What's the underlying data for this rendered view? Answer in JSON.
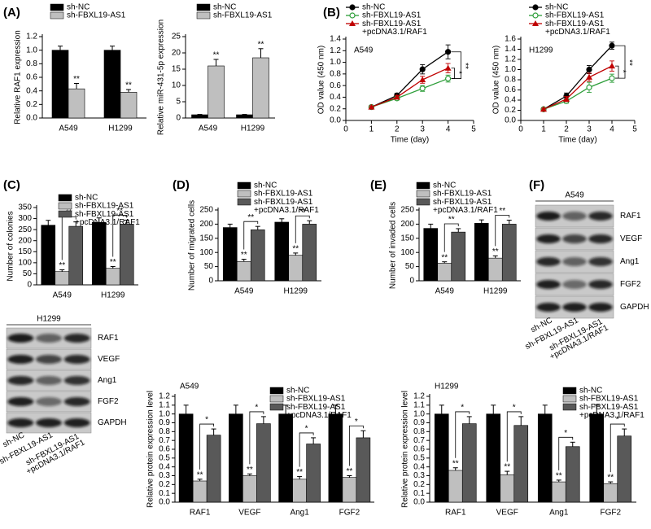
{
  "panel_labels": [
    "(A)",
    "(B)",
    "(C)",
    "(D)",
    "(E)",
    "(F)"
  ],
  "chart_data": [
    {
      "type": "bar",
      "ylabel": "Relative RAF1 expression",
      "categories": [
        "A549",
        "H1299"
      ],
      "series": [
        {
          "name": "sh-NC",
          "color": "#000000",
          "values": [
            1.0,
            1.0
          ],
          "errors": [
            0.06,
            0.06
          ]
        },
        {
          "name": "sh-FBXL19-AS1",
          "color": "#bfbfbf",
          "values": [
            0.43,
            0.38
          ],
          "errors": [
            0.08,
            0.04
          ],
          "significance": [
            "**",
            "**"
          ]
        }
      ],
      "ylim": [
        0,
        1.2
      ],
      "yticks": [
        {
          "value": 0,
          "label": "0.0"
        },
        0.2,
        0.4,
        0.6,
        0.8,
        {
          "value": 1,
          "label": "1.0"
        },
        1.2
      ]
    },
    {
      "type": "bar",
      "ylabel": "Relative miR-431-5p expression",
      "categories": [
        "A549",
        "H1299"
      ],
      "series": [
        {
          "name": "sh-NC",
          "color": "#000000",
          "values": [
            1,
            1
          ],
          "errors": [
            0.1,
            0.1
          ]
        },
        {
          "name": "sh-FBXL19-AS1",
          "color": "#bfbfbf",
          "values": [
            16,
            18.5
          ],
          "errors": [
            2,
            2.8
          ],
          "significance": [
            "**",
            "**"
          ]
        }
      ],
      "ylim": [
        0,
        25
      ],
      "yticks": [
        0,
        5,
        10,
        15,
        20,
        25
      ]
    },
    {
      "type": "line",
      "annotation": "A549",
      "ylabel": "OD value (450 nm)",
      "xlabel": "Time (day)",
      "x": [
        1,
        2,
        3,
        4
      ],
      "series": [
        {
          "name": "sh-NC",
          "color": "#000000",
          "marker": "circle",
          "values": [
            0.23,
            0.43,
            0.88,
            1.18
          ],
          "errors": [
            0.02,
            0.04,
            0.08,
            0.12
          ]
        },
        {
          "name": "sh-FBXL19-AS1",
          "color": "#2e9e3a",
          "marker": "open-circle",
          "values": [
            0.23,
            0.38,
            0.55,
            0.72
          ],
          "errors": [
            0.02,
            0.03,
            0.05,
            0.06
          ]
        },
        {
          "name": "sh-FBXL19-AS1 +pcDNA3.1/RAF1",
          "color": "#c00000",
          "marker": "triangle",
          "values": [
            0.23,
            0.4,
            0.7,
            0.9
          ],
          "errors": [
            0.02,
            0.03,
            0.06,
            0.08
          ]
        }
      ],
      "significance": [
        "**",
        "*"
      ],
      "xlim": [
        0,
        5
      ],
      "xticks": [
        0,
        1,
        2,
        3,
        4,
        5
      ],
      "ylim": [
        0,
        1.4
      ],
      "yticks": [
        {
          "value": 0,
          "label": "0.0"
        },
        0.2,
        0.4,
        0.6,
        0.8,
        {
          "value": 1,
          "label": "1.0"
        },
        1.2,
        1.4
      ]
    },
    {
      "type": "line",
      "annotation": "H1299",
      "ylabel": "OD value (450 nm)",
      "xlabel": "Time (day)",
      "x": [
        1,
        2,
        3,
        4
      ],
      "series": [
        {
          "name": "sh-NC",
          "color": "#000000",
          "marker": "circle",
          "values": [
            0.22,
            0.48,
            1.0,
            1.47
          ],
          "errors": [
            0.02,
            0.06,
            0.08,
            0.07
          ]
        },
        {
          "name": "sh-FBXL19-AS1",
          "color": "#2e9e3a",
          "marker": "open-circle",
          "values": [
            0.22,
            0.38,
            0.65,
            0.83
          ],
          "errors": [
            0.02,
            0.04,
            0.1,
            0.08
          ]
        },
        {
          "name": "sh-FBXL19-AS1 +pcDNA3.1/RAF1",
          "color": "#c00000",
          "marker": "triangle",
          "values": [
            0.22,
            0.42,
            0.85,
            1.07
          ],
          "errors": [
            0.02,
            0.05,
            0.08,
            0.1
          ]
        }
      ],
      "significance": [
        "**",
        "*"
      ],
      "xlim": [
        0,
        5
      ],
      "xticks": [
        0,
        1,
        2,
        3,
        4,
        5
      ],
      "ylim": [
        0,
        1.6
      ],
      "yticks": [
        {
          "value": 0,
          "label": "0.0"
        },
        0.2,
        0.4,
        0.6,
        0.8,
        {
          "value": 1,
          "label": "1.0"
        },
        1.2,
        1.4,
        1.6
      ]
    },
    {
      "type": "bar",
      "ylabel": "Number of colonies",
      "categories": [
        "A549",
        "H1299"
      ],
      "series": [
        {
          "name": "sh-NC",
          "color": "#000000",
          "values": [
            270,
            283
          ],
          "errors": [
            22,
            20
          ]
        },
        {
          "name": "sh-FBXL19-AS1",
          "color": "#bfbfbf",
          "values": [
            60,
            75
          ],
          "errors": [
            8,
            8
          ],
          "significance": [
            "**",
            "**"
          ]
        },
        {
          "name": "sh-FBXL19-AS1 +pcDNA3.1/RAF1",
          "color": "#595959",
          "values": [
            265,
            275
          ],
          "errors": [
            20,
            18
          ],
          "significance": [
            "**",
            "**"
          ]
        }
      ],
      "ylim": [
        0,
        350
      ],
      "yticks": [
        0,
        50,
        100,
        150,
        200,
        250,
        300,
        350
      ]
    },
    {
      "type": "bar",
      "ylabel": "Number of migrated cells",
      "categories": [
        "A549",
        "H1299"
      ],
      "series": [
        {
          "name": "sh-NC",
          "color": "#000000",
          "values": [
            188,
            207
          ],
          "errors": [
            12,
            12
          ]
        },
        {
          "name": "sh-FBXL19-AS1",
          "color": "#bfbfbf",
          "values": [
            68,
            90
          ],
          "errors": [
            8,
            8
          ],
          "significance": [
            "**",
            "**"
          ]
        },
        {
          "name": "sh-FBXL19-AS1 +pcDNA3.1/RAF1",
          "color": "#595959",
          "values": [
            180,
            200
          ],
          "errors": [
            12,
            12
          ],
          "significance": [
            "**",
            "**"
          ]
        }
      ],
      "ylim": [
        0,
        250
      ],
      "yticks": [
        0,
        50,
        100,
        150,
        200,
        250
      ]
    },
    {
      "type": "bar",
      "ylabel": "Number of invaded cells",
      "categories": [
        "A549",
        "H1299"
      ],
      "series": [
        {
          "name": "sh-NC",
          "color": "#000000",
          "values": [
            185,
            203
          ],
          "errors": [
            15,
            12
          ]
        },
        {
          "name": "sh-FBXL19-AS1",
          "color": "#bfbfbf",
          "values": [
            62,
            80
          ],
          "errors": [
            5,
            8
          ],
          "significance": [
            "**",
            "**"
          ]
        },
        {
          "name": "sh-FBXL19-AS1 +pcDNA3.1/RAF1",
          "color": "#595959",
          "values": [
            172,
            200
          ],
          "errors": [
            12,
            14
          ],
          "significance": [
            "**",
            "**"
          ]
        }
      ],
      "ylim": [
        0,
        250
      ],
      "yticks": [
        0,
        50,
        100,
        150,
        200,
        250
      ]
    },
    {
      "type": "bar",
      "annotation": "A549",
      "ylabel": "Relative protein expression level",
      "categories": [
        "RAF1",
        "VEGF",
        "Ang1",
        "FGF2"
      ],
      "series": [
        {
          "name": "sh-NC",
          "color": "#000000",
          "values": [
            1,
            1,
            1,
            1
          ],
          "errors": [
            0.1,
            0.1,
            0.1,
            0.1
          ]
        },
        {
          "name": "sh-FBXL19-AS1",
          "color": "#bfbfbf",
          "values": [
            0.24,
            0.3,
            0.26,
            0.28
          ],
          "errors": [
            0.02,
            0.02,
            0.03,
            0.02
          ],
          "significance": [
            "**",
            "**",
            "**",
            "**"
          ]
        },
        {
          "name": "sh-FBXL19-AS1 +pcDNA3.1/RAF1",
          "color": "#595959",
          "values": [
            0.76,
            0.89,
            0.66,
            0.73
          ],
          "errors": [
            0.07,
            0.08,
            0.07,
            0.08
          ],
          "significance": [
            "*",
            "*",
            "*",
            "*"
          ]
        }
      ],
      "ylim": [
        0,
        1.2
      ],
      "yticks": [
        {
          "value": 0,
          "label": "0.0"
        },
        0.1,
        0.2,
        0.3,
        0.4,
        0.5,
        0.6,
        0.7,
        0.8,
        0.9,
        {
          "value": 1,
          "label": "1.0"
        },
        1.1,
        1.2
      ]
    },
    {
      "type": "bar",
      "annotation": "H1299",
      "ylabel": "Relative protein expression level",
      "categories": [
        "RAF1",
        "VEGF",
        "Ang1",
        "FGF2"
      ],
      "series": [
        {
          "name": "sh-NC",
          "color": "#000000",
          "values": [
            1,
            1,
            1,
            1
          ],
          "errors": [
            0.1,
            0.1,
            0.1,
            0.1
          ]
        },
        {
          "name": "sh-FBXL19-AS1",
          "color": "#bfbfbf",
          "values": [
            0.36,
            0.31,
            0.23,
            0.21
          ],
          "errors": [
            0.03,
            0.04,
            0.02,
            0.02
          ],
          "significance": [
            "**",
            "**",
            "**",
            "**"
          ]
        },
        {
          "name": "sh-FBXL19-AS1 +pcDNA3.1/RAF1",
          "color": "#595959",
          "values": [
            0.89,
            0.87,
            0.63,
            0.75
          ],
          "errors": [
            0.08,
            0.1,
            0.05,
            0.08
          ],
          "significance": [
            "*",
            "*",
            "*",
            "*"
          ]
        }
      ],
      "ylim": [
        0,
        1.2
      ],
      "yticks": [
        {
          "value": 0,
          "label": "0.0"
        },
        0.1,
        0.2,
        0.3,
        0.4,
        0.5,
        0.6,
        0.7,
        0.8,
        0.9,
        {
          "value": 1,
          "label": "1.0"
        },
        1.1,
        1.2
      ]
    }
  ],
  "blots": [
    {
      "cell": "A549",
      "rows": [
        "RAF1",
        "VEGF",
        "Ang1",
        "FGF2",
        "GAPDH"
      ],
      "samples": [
        "sh-NC",
        "sh-FBXL19-AS1",
        "sh-FBXL19-AS1 +pcDNA3.1/RAF1"
      ]
    },
    {
      "cell": "H1299",
      "rows": [
        "RAF1",
        "VEGF",
        "Ang1",
        "FGF2",
        "GAPDH"
      ],
      "samples": [
        "sh-NC",
        "sh-FBXL19-AS1",
        "sh-FBXL19-AS1 +pcDNA3.1/RAF1"
      ]
    }
  ]
}
